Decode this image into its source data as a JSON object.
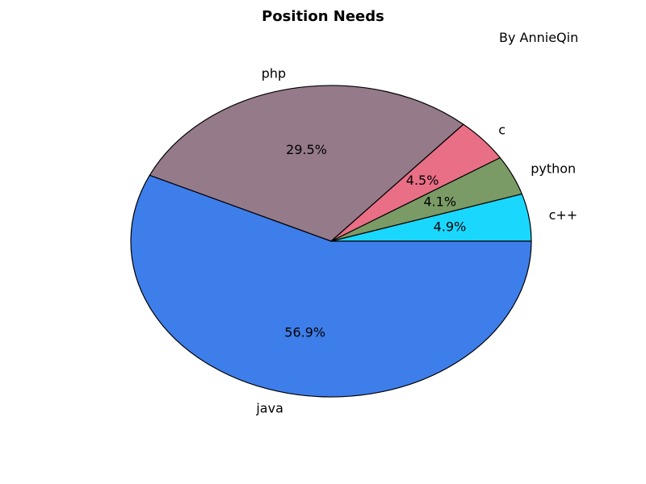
{
  "chart_data": {
    "type": "pie",
    "title": "Position Needs",
    "caption": "By AnnieQin",
    "slices": [
      {
        "label": "c++",
        "value": 4.9,
        "pct_label": "4.9%",
        "color": "#1ad7fe"
      },
      {
        "label": "python",
        "value": 4.1,
        "pct_label": "4.1%",
        "color": "#7b9b66"
      },
      {
        "label": "c",
        "value": 4.5,
        "pct_label": "4.5%",
        "color": "#e96f86"
      },
      {
        "label": "php",
        "value": 29.5,
        "pct_label": "29.5%",
        "color": "#957a8a"
      },
      {
        "label": "java",
        "value": 56.9,
        "pct_label": "56.9%",
        "color": "#3e7eea"
      }
    ],
    "start_angle_deg": 0,
    "direction": "counterclockwise",
    "edge_color": "#000000"
  }
}
